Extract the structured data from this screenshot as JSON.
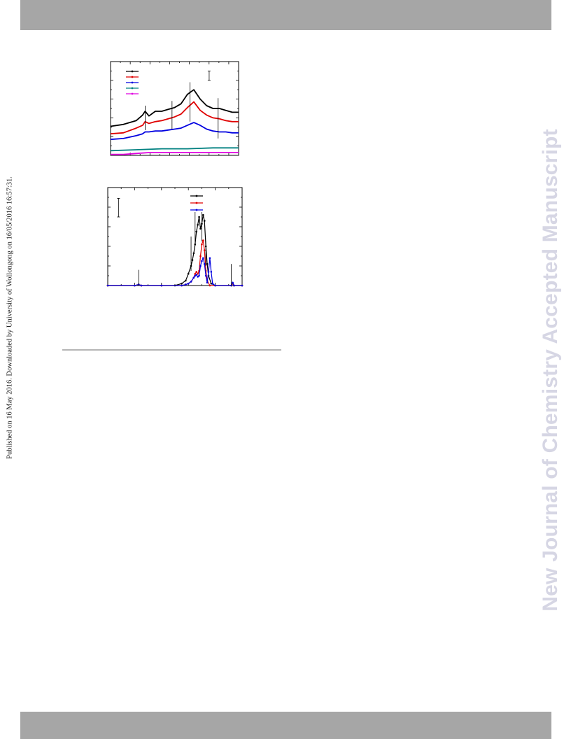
{
  "header": {
    "bar_color": "#a6a6a6"
  },
  "footer": {
    "bar_color": "#a6a6a6"
  },
  "side_note": "Published on 16 May 2016. Downloaded by University of Wollongong on 16/05/2016 16:57:31.",
  "watermark": {
    "text": "New Journal of Chemistry Accepted Manuscript",
    "color": "#d6d6e4"
  },
  "chart_data": [
    {
      "type": "line",
      "title": "",
      "xlabel": "",
      "ylabel": "",
      "xlim": [
        0,
        100
      ],
      "ylim": [
        0,
        100
      ],
      "grid": false,
      "legend": "top-left",
      "annotations": [
        {
          "kind": "scale-bar",
          "x": 77,
          "y1": 90,
          "y2": 80
        },
        {
          "kind": "marker-line",
          "x": 27,
          "y1": 53,
          "y2": 27
        },
        {
          "kind": "marker-line",
          "x": 48,
          "y1": 58,
          "y2": 28
        },
        {
          "kind": "marker-line",
          "x": 62,
          "y1": 78,
          "y2": 36
        },
        {
          "kind": "marker-line",
          "x": 84,
          "y1": 61,
          "y2": 18
        }
      ],
      "series": [
        {
          "color": "#000000",
          "values": [
            [
              0,
              31
            ],
            [
              10,
              33
            ],
            [
              20,
              37
            ],
            [
              25,
              43
            ],
            [
              27,
              47
            ],
            [
              30,
              42
            ],
            [
              35,
              47
            ],
            [
              40,
              47
            ],
            [
              45,
              49
            ],
            [
              50,
              51
            ],
            [
              55,
              55
            ],
            [
              60,
              65
            ],
            [
              65,
              70
            ],
            [
              70,
              60
            ],
            [
              75,
              53
            ],
            [
              80,
              50
            ],
            [
              85,
              50
            ],
            [
              90,
              48
            ],
            [
              95,
              46
            ],
            [
              100,
              46
            ]
          ]
        },
        {
          "color": "#e00000",
          "values": [
            [
              0,
              23
            ],
            [
              10,
              24
            ],
            [
              20,
              29
            ],
            [
              25,
              32
            ],
            [
              27,
              36
            ],
            [
              30,
              34
            ],
            [
              35,
              36
            ],
            [
              40,
              37
            ],
            [
              45,
              39
            ],
            [
              50,
              41
            ],
            [
              55,
              44
            ],
            [
              60,
              51
            ],
            [
              65,
              57
            ],
            [
              70,
              48
            ],
            [
              75,
              43
            ],
            [
              80,
              40
            ],
            [
              85,
              39
            ],
            [
              90,
              37
            ],
            [
              95,
              36
            ],
            [
              100,
              36
            ]
          ]
        },
        {
          "color": "#0000e0",
          "values": [
            [
              0,
              17
            ],
            [
              10,
              18
            ],
            [
              20,
              21
            ],
            [
              25,
              23
            ],
            [
              27,
              25
            ],
            [
              30,
              25
            ],
            [
              35,
              26
            ],
            [
              40,
              26
            ],
            [
              45,
              27
            ],
            [
              50,
              28
            ],
            [
              55,
              29
            ],
            [
              60,
              32
            ],
            [
              65,
              35
            ],
            [
              70,
              32
            ],
            [
              75,
              28
            ],
            [
              80,
              26
            ],
            [
              85,
              25
            ],
            [
              90,
              25
            ],
            [
              95,
              24
            ],
            [
              100,
              24
            ]
          ]
        },
        {
          "color": "#008080",
          "values": [
            [
              0,
              5
            ],
            [
              20,
              6
            ],
            [
              40,
              7
            ],
            [
              60,
              7
            ],
            [
              80,
              8
            ],
            [
              100,
              8
            ]
          ]
        },
        {
          "color": "#e000e0",
          "values": [
            [
              0,
              1
            ],
            [
              10,
              1
            ],
            [
              20,
              2
            ],
            [
              30,
              3
            ],
            [
              50,
              3
            ],
            [
              70,
              3
            ],
            [
              100,
              3
            ]
          ]
        }
      ],
      "legend_entries": [
        {
          "color": "#000000"
        },
        {
          "color": "#e00000"
        },
        {
          "color": "#0000e0"
        },
        {
          "color": "#008080"
        },
        {
          "color": "#e000e0"
        }
      ]
    },
    {
      "type": "line",
      "title": "",
      "xlabel": "",
      "ylabel": "",
      "xlim": [
        0,
        100
      ],
      "ylim": [
        0,
        100
      ],
      "grid": false,
      "legend": "top-right",
      "annotations": [
        {
          "kind": "scale-bar",
          "x": 8,
          "y1": 89,
          "y2": 70
        },
        {
          "kind": "marker-line",
          "x": 23,
          "y1": 0,
          "y2": 16
        },
        {
          "kind": "marker-line",
          "x": 62,
          "y1": 15,
          "y2": 50
        },
        {
          "kind": "marker-line",
          "x": 65,
          "y1": 40,
          "y2": 75
        },
        {
          "kind": "marker-line",
          "x": 70,
          "y1": 45,
          "y2": 75
        },
        {
          "kind": "marker-line",
          "x": 73,
          "y1": 20,
          "y2": 45
        },
        {
          "kind": "marker-line",
          "x": 92,
          "y1": 0,
          "y2": 22
        }
      ],
      "series": [
        {
          "color": "#000000",
          "values": [
            [
              0,
              0
            ],
            [
              20,
              0
            ],
            [
              23,
              1
            ],
            [
              25,
              0
            ],
            [
              40,
              0
            ],
            [
              50,
              0
            ],
            [
              55,
              2
            ],
            [
              58,
              5
            ],
            [
              60,
              12
            ],
            [
              62,
              20
            ],
            [
              63,
              26
            ],
            [
              64,
              33
            ],
            [
              65,
              42
            ],
            [
              66,
              55
            ],
            [
              67,
              62
            ],
            [
              68,
              70
            ],
            [
              69,
              58
            ],
            [
              70,
              63
            ],
            [
              71,
              72
            ],
            [
              72,
              66
            ],
            [
              73,
              40
            ],
            [
              74,
              22
            ],
            [
              75,
              10
            ],
            [
              77,
              2
            ],
            [
              80,
              0
            ],
            [
              92,
              0
            ],
            [
              93,
              2
            ],
            [
              94,
              0
            ],
            [
              100,
              0
            ]
          ]
        },
        {
          "color": "#e00000",
          "values": [
            [
              0,
              0
            ],
            [
              20,
              0
            ],
            [
              23,
              1
            ],
            [
              25,
              0
            ],
            [
              40,
              0
            ],
            [
              55,
              0
            ],
            [
              58,
              1
            ],
            [
              60,
              2
            ],
            [
              62,
              4
            ],
            [
              64,
              8
            ],
            [
              65,
              12
            ],
            [
              66,
              14
            ],
            [
              67,
              12
            ],
            [
              68,
              15
            ],
            [
              69,
              30
            ],
            [
              70,
              42
            ],
            [
              71,
              46
            ],
            [
              72,
              36
            ],
            [
              73,
              15
            ],
            [
              74,
              5
            ],
            [
              76,
              0
            ],
            [
              92,
              0
            ],
            [
              93,
              2
            ],
            [
              94,
              0
            ],
            [
              100,
              0
            ]
          ]
        },
        {
          "color": "#0000e0",
          "values": [
            [
              0,
              0
            ],
            [
              20,
              0
            ],
            [
              23,
              1
            ],
            [
              25,
              0
            ],
            [
              40,
              0
            ],
            [
              55,
              0
            ],
            [
              58,
              1
            ],
            [
              60,
              2
            ],
            [
              62,
              4
            ],
            [
              64,
              8
            ],
            [
              65,
              10
            ],
            [
              66,
              11
            ],
            [
              67,
              9
            ],
            [
              68,
              10
            ],
            [
              69,
              20
            ],
            [
              70,
              25
            ],
            [
              71,
              28
            ],
            [
              72,
              22
            ],
            [
              73,
              10
            ],
            [
              74,
              3
            ],
            [
              75,
              14
            ],
            [
              76,
              28
            ],
            [
              77,
              14
            ],
            [
              78,
              2
            ],
            [
              80,
              0
            ],
            [
              92,
              0
            ],
            [
              93,
              3
            ],
            [
              94,
              0
            ],
            [
              100,
              0
            ]
          ]
        }
      ],
      "legend_entries": [
        {
          "color": "#000000"
        },
        {
          "color": "#e00000"
        },
        {
          "color": "#0000e0"
        }
      ]
    }
  ]
}
